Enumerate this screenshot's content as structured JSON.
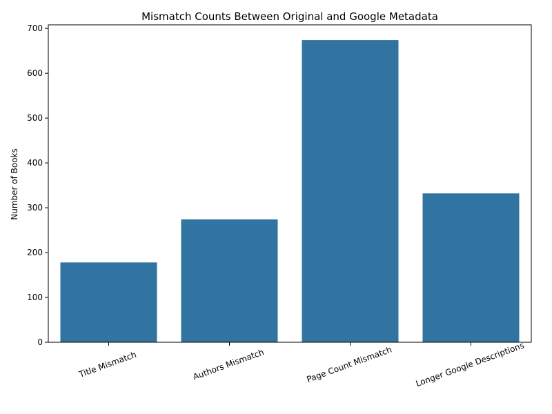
{
  "chart_data": {
    "type": "bar",
    "title": "Mismatch Counts Between Original and Google Metadata",
    "xlabel": "",
    "ylabel": "Number of Books",
    "categories": [
      "Title Mismatch",
      "Authors Mismatch",
      "Page Count Mismatch",
      "Longer Google Descriptions"
    ],
    "values": [
      178,
      274,
      674,
      332
    ],
    "ylim": [
      0,
      708
    ],
    "yticks": [
      0,
      100,
      200,
      300,
      400,
      500,
      600,
      700
    ],
    "grid": false,
    "legend": "none",
    "bar_color": "#3274a1"
  }
}
